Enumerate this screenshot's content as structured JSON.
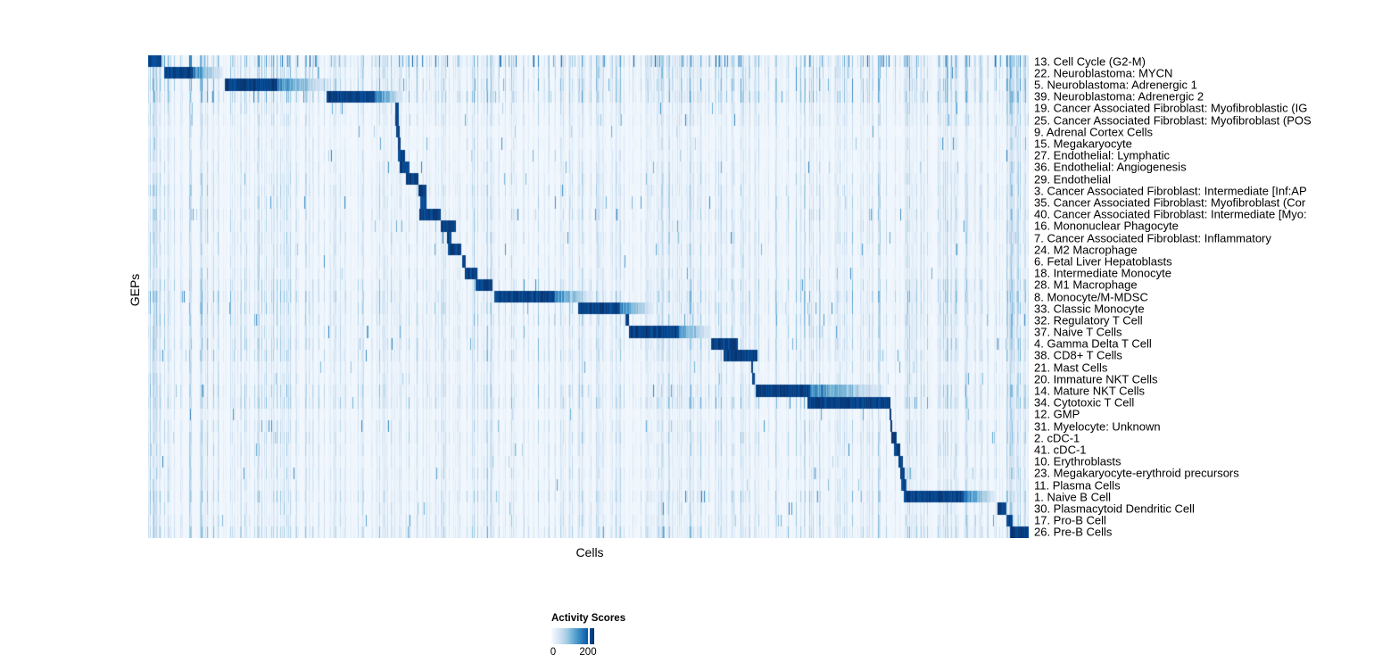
{
  "chart_data": {
    "type": "heatmap",
    "title": "",
    "xlabel": "Cells",
    "ylabel": "GEPs",
    "legend_title": "Activity Scores",
    "colorbar": {
      "tick_labels": [
        "0",
        "200"
      ],
      "tick_values": [
        0,
        200
      ],
      "value_min": 0,
      "value_max": 230
    },
    "palette": {
      "name": "Blues",
      "low": "#f7fbff",
      "high": "#08306b",
      "stops": [
        "#f7fbff",
        "#deebf7",
        "#c6dbef",
        "#9ecae1",
        "#6baed6",
        "#4292c6",
        "#2171b5",
        "#08519c",
        "#08306b"
      ]
    },
    "n_rows": 41,
    "axis_note": "rows are GEPs, columns are cells ordered so high-activity blocks form a diagonal; block values are fractions of the x-axis [core_start, core_end, fade_end]",
    "rows": [
      {
        "label": "13. Cell Cycle (G2-M)",
        "block": [
          0.0,
          0.015,
          0.015
        ],
        "noise": 0.9,
        "scatter": true
      },
      {
        "label": "22. Neuroblastoma: MYCN",
        "block": [
          0.018,
          0.05,
          0.085
        ],
        "noise": 0.75
      },
      {
        "label": "5. Neuroblastoma: Adrenergic 1",
        "block": [
          0.087,
          0.146,
          0.205
        ],
        "noise": 0.8
      },
      {
        "label": "39. Neuroblastoma: Adrenergic 2",
        "block": [
          0.202,
          0.257,
          0.29
        ],
        "noise": 0.8
      },
      {
        "label": "19. Cancer Associated Fibroblast: Myofibroblastic (IG",
        "block": [
          0.28,
          0.284,
          0.284
        ],
        "noise": 0.5
      },
      {
        "label": "25. Cancer Associated Fibroblast: Myofibroblast (POS",
        "block": [
          0.2805,
          0.2845,
          0.2845
        ],
        "noise": 0.5
      },
      {
        "label": "9. Adrenal Cortex Cells",
        "block": [
          0.2815,
          0.2848,
          0.2848
        ],
        "noise": 0.35
      },
      {
        "label": "15. Megakaryocyte",
        "block": [
          0.2836,
          0.2866,
          0.2866
        ],
        "noise": 0.4
      },
      {
        "label": "27. Endothelial: Lymphatic",
        "block": [
          0.2827,
          0.2908,
          0.2908
        ],
        "noise": 0.4
      },
      {
        "label": "36. Endothelial: Angiogenesis",
        "block": [
          0.2857,
          0.2959,
          0.2959
        ],
        "noise": 0.45
      },
      {
        "label": "29. Endothelial",
        "block": [
          0.2928,
          0.306,
          0.306
        ],
        "noise": 0.5
      },
      {
        "label": "3. Cancer Associated Fibroblast: Intermediate [Inf:AP",
        "block": [
          0.306,
          0.3151,
          0.3151
        ],
        "noise": 0.55
      },
      {
        "label": "35. Cancer Associated Fibroblast: Myofibroblast (Cor",
        "block": [
          0.309,
          0.3161,
          0.3161
        ],
        "noise": 0.5
      },
      {
        "label": "40. Cancer Associated Fibroblast: Intermediate [Myo:",
        "block": [
          0.308,
          0.3323,
          0.3323
        ],
        "noise": 0.55
      },
      {
        "label": "16. Mononuclear Phagocyte",
        "block": [
          0.3323,
          0.3486,
          0.3486
        ],
        "noise": 0.5
      },
      {
        "label": "7. Cancer Associated Fibroblast: Inflammatory",
        "block": [
          0.3384,
          0.3435,
          0.3435
        ],
        "noise": 0.55
      },
      {
        "label": "24. M2 Macrophage",
        "block": [
          0.3404,
          0.3556,
          0.3556
        ],
        "noise": 0.5
      },
      {
        "label": "6. Fetal Liver Hepatoblasts",
        "block": [
          0.3566,
          0.3597,
          0.3597
        ],
        "noise": 0.45
      },
      {
        "label": "18. Intermediate Monocyte",
        "block": [
          0.3587,
          0.3729,
          0.3729
        ],
        "noise": 0.5
      },
      {
        "label": "28. M1 Macrophage",
        "block": [
          0.3718,
          0.3901,
          0.3901
        ],
        "noise": 0.6
      },
      {
        "label": "8. Monocyte/M-MDSC",
        "block": [
          0.3921,
          0.46,
          0.505
        ],
        "noise": 0.7
      },
      {
        "label": "33. Classic Monocyte",
        "block": [
          0.4883,
          0.535,
          0.575
        ],
        "noise": 0.65
      },
      {
        "label": "32. Regulatory T Cell",
        "block": [
          0.542,
          0.546,
          0.546
        ],
        "noise": 0.6
      },
      {
        "label": "37. Naive T Cells",
        "block": [
          0.5451,
          0.6018,
          0.6393
        ],
        "noise": 0.55
      },
      {
        "label": "4. Gamma Delta T Cell",
        "block": [
          0.6393,
          0.6697,
          0.6697
        ],
        "noise": 0.6
      },
      {
        "label": "38. CD8+ T Cells",
        "block": [
          0.6525,
          0.691,
          0.691
        ],
        "noise": 0.6
      },
      {
        "label": "21. Mast Cells",
        "block": [
          0.6839,
          0.6861,
          0.6861
        ],
        "noise": 0.45
      },
      {
        "label": "20. Immature NKT Cells",
        "block": [
          0.685,
          0.6885,
          0.6885
        ],
        "noise": 0.5
      },
      {
        "label": "14. Mature NKT Cells",
        "block": [
          0.689,
          0.7508,
          0.835
        ],
        "noise": 0.65
      },
      {
        "label": "34. Cytotoxic T Cell",
        "block": [
          0.7487,
          0.842,
          0.842
        ],
        "noise": 0.7
      },
      {
        "label": "12. GMP",
        "block": [
          0.841,
          0.8432,
          0.8432
        ],
        "noise": 0.4
      },
      {
        "label": "31. Myelocyte: Unknown",
        "block": [
          0.842,
          0.8442,
          0.8442
        ],
        "noise": 0.5
      },
      {
        "label": "2. cDC-1",
        "block": [
          0.843,
          0.85,
          0.85
        ],
        "noise": 0.55
      },
      {
        "label": "41. cDC-1",
        "block": [
          0.847,
          0.8531,
          0.8531
        ],
        "noise": 0.5
      },
      {
        "label": "10. Erythroblasts",
        "block": [
          0.852,
          0.8571,
          0.8571
        ],
        "noise": 0.45
      },
      {
        "label": "23. Megakaryocyte-erythroid precursors",
        "block": [
          0.8531,
          0.8582,
          0.8582
        ],
        "noise": 0.5
      },
      {
        "label": "11. Plasma Cells",
        "block": [
          0.8551,
          0.8602,
          0.8602
        ],
        "noise": 0.45
      },
      {
        "label": "1. Naive B Cell",
        "block": [
          0.8572,
          0.926,
          0.9635
        ],
        "noise": 0.6
      },
      {
        "label": "30. Plasmacytoid Dendritic Cell",
        "block": [
          0.9645,
          0.9746,
          0.9746
        ],
        "noise": 0.5
      },
      {
        "label": "17. Pro-B Cell",
        "block": [
          0.9746,
          0.9817,
          0.9817
        ],
        "noise": 0.55
      },
      {
        "label": "26. Pre-B Cells",
        "block": [
          0.9787,
          1.0,
          1.0
        ],
        "noise": 0.65
      }
    ]
  }
}
